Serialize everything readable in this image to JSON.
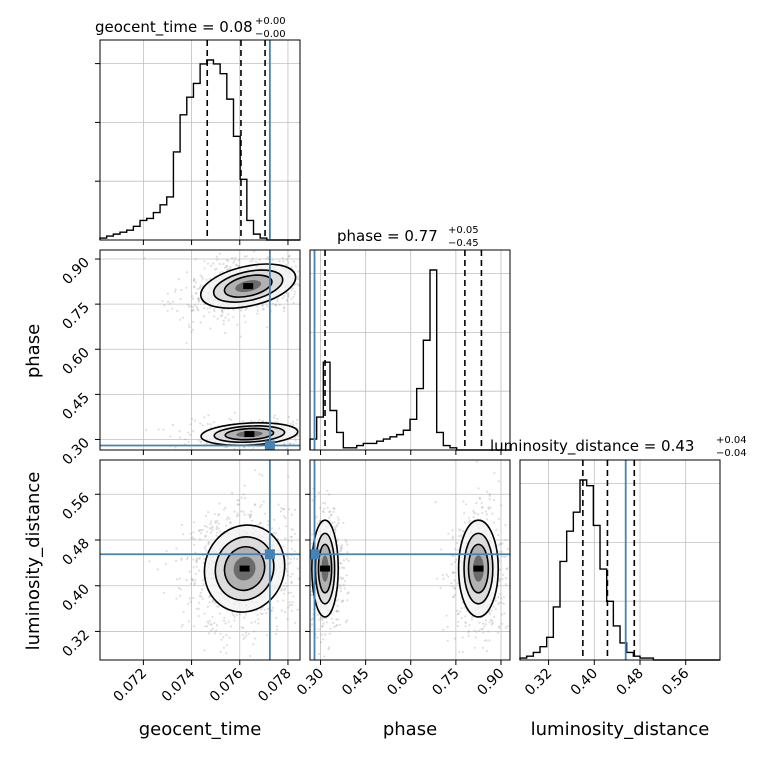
{
  "chart_data": {
    "type": "corner",
    "parameters": [
      "geocent_time",
      "phase",
      "luminosity_distance"
    ],
    "truths": {
      "geocent_time": 0.07725,
      "phase": 0.28,
      "luminosity_distance": 0.455
    },
    "colors": {
      "truth": "#4682b4",
      "hist": "#000000",
      "grid": "#c0c0c0",
      "scatter": "#808080"
    },
    "grid": true,
    "titles": [
      {
        "param": "geocent_time",
        "text": "geocent_time = 0.08",
        "upper": "+0.00",
        "lower": "−0.00"
      },
      {
        "param": "phase",
        "text": "phase = 0.77",
        "upper": "+0.05",
        "lower": "−0.45"
      },
      {
        "param": "luminosity_distance",
        "text": "luminosity_distance = 0.43",
        "upper": "+0.04",
        "lower": "−0.04"
      }
    ],
    "axes": {
      "geocent_time": {
        "label": "geocent_time",
        "range": [
          0.0702,
          0.0785
        ],
        "ticks": [
          0.072,
          0.074,
          0.076,
          0.078
        ],
        "tick_labels": [
          "0.072",
          "0.074",
          "0.076",
          "0.078"
        ]
      },
      "phase": {
        "label": "phase",
        "range": [
          0.265,
          0.93
        ],
        "ticks": [
          0.3,
          0.45,
          0.6,
          0.75,
          0.9
        ],
        "tick_labels": [
          "0.30",
          "0.45",
          "0.60",
          "0.75",
          "0.90"
        ]
      },
      "luminosity_distance": {
        "label": "luminosity_distance",
        "range": [
          0.27,
          0.62
        ],
        "ticks": [
          0.32,
          0.4,
          0.48,
          0.56
        ],
        "tick_labels": [
          "0.32",
          "0.40",
          "0.48",
          "0.56"
        ]
      }
    },
    "histograms": {
      "geocent_time": {
        "bins_start": 0.0702,
        "bin_width": 0.000277,
        "counts": [
          1,
          2,
          3,
          4,
          5,
          7,
          10,
          11,
          14,
          18,
          22,
          45,
          64,
          73,
          80,
          90,
          92,
          90,
          85,
          72,
          53,
          31,
          10,
          3,
          1,
          0,
          0,
          0,
          0,
          0
        ],
        "quantiles": [
          0.07465,
          0.07605,
          0.07705
        ]
      },
      "phase": {
        "bins_start": 0.265,
        "bin_width": 0.02217,
        "counts": [
          5,
          15,
          40,
          18,
          8,
          1,
          1,
          2,
          3,
          3,
          4,
          5,
          6,
          7,
          9,
          14,
          28,
          50,
          82,
          8,
          2,
          1,
          0,
          0,
          0,
          0,
          0,
          0,
          0,
          0
        ],
        "quantiles": [
          0.315,
          0.78,
          0.835
        ]
      },
      "luminosity_distance": {
        "bins_start": 0.27,
        "bin_width": 0.01167,
        "counts": [
          1,
          2,
          4,
          7,
          12,
          28,
          52,
          68,
          78,
          95,
          92,
          71,
          48,
          31,
          18,
          9,
          4,
          2,
          1,
          1,
          0,
          0,
          0,
          0,
          0,
          0,
          0,
          0,
          0,
          0
        ],
        "quantiles": [
          0.38,
          0.423,
          0.47
        ]
      }
    },
    "density_modes": [
      {
        "pair": [
          "geocent_time",
          "phase"
        ],
        "center": [
          0.07635,
          0.81
        ]
      },
      {
        "pair": [
          "geocent_time",
          "phase"
        ],
        "center": [
          0.0764,
          0.318
        ]
      },
      {
        "pair": [
          "geocent_time",
          "luminosity_distance"
        ],
        "center": [
          0.0762,
          0.43
        ]
      },
      {
        "pair": [
          "phase",
          "luminosity_distance"
        ],
        "center": [
          0.315,
          0.43
        ]
      },
      {
        "pair": [
          "phase",
          "luminosity_distance"
        ],
        "center": [
          0.825,
          0.43
        ]
      }
    ]
  }
}
